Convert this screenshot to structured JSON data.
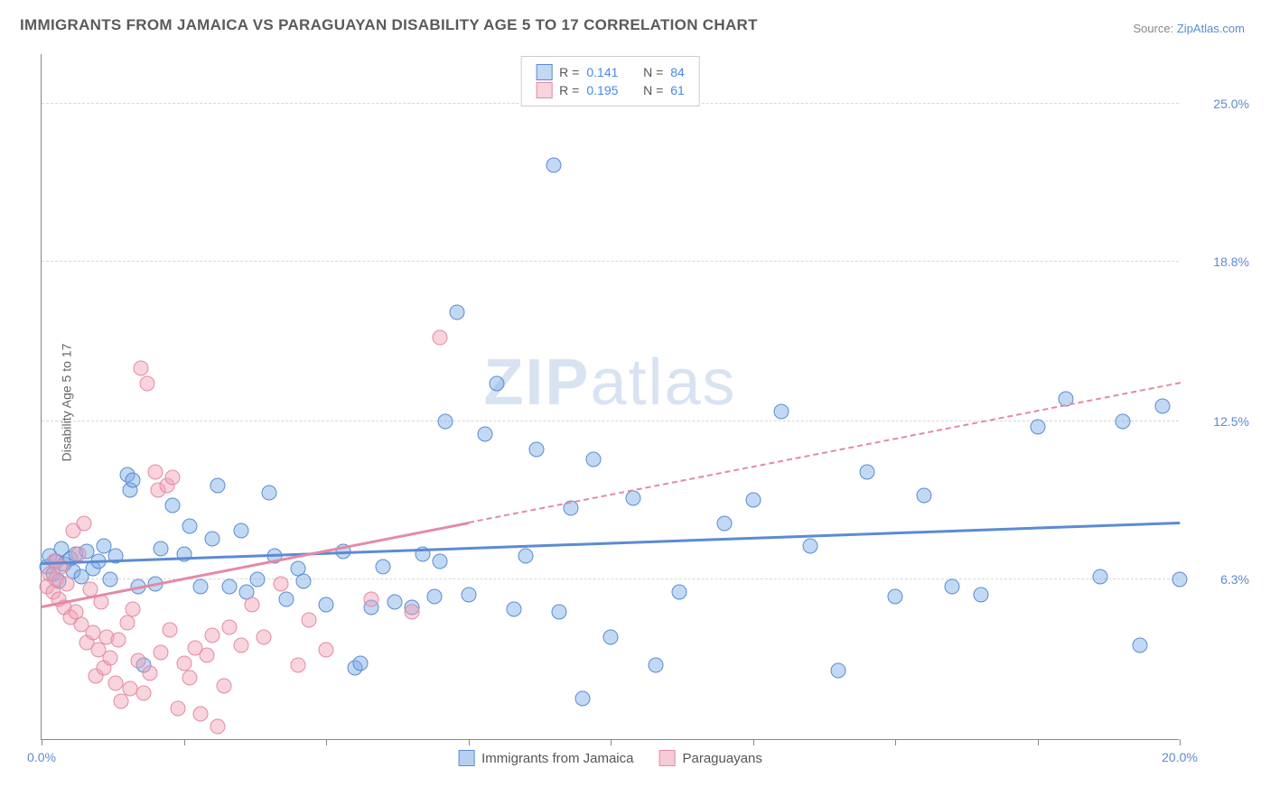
{
  "title": "IMMIGRANTS FROM JAMAICA VS PARAGUAYAN DISABILITY AGE 5 TO 17 CORRELATION CHART",
  "source_prefix": "Source: ",
  "source_link": "ZipAtlas.com",
  "ylabel": "Disability Age 5 to 17",
  "watermark_bold": "ZIP",
  "watermark_rest": "atlas",
  "chart": {
    "type": "scatter-correlation",
    "background_color": "#ffffff",
    "grid_color": "#d8d8d8",
    "axis_color": "#888888",
    "xlim": [
      0,
      20
    ],
    "ylim": [
      0,
      27
    ],
    "ytick_values": [
      6.3,
      12.5,
      18.8,
      25.0
    ],
    "ytick_labels": [
      "6.3%",
      "12.5%",
      "18.8%",
      "25.0%"
    ],
    "xtick_values": [
      0,
      2.5,
      5,
      7.5,
      10,
      12.5,
      15,
      17.5,
      20
    ],
    "xtick_label_left": "0.0%",
    "xtick_label_right": "20.0%",
    "tick_label_color": "#5b8bd4",
    "tick_label_fontsize": 14,
    "marker_radius": 8.5,
    "marker_border_width": 1.2,
    "series": [
      {
        "name": "Immigrants from Jamaica",
        "fill": "rgba(120,170,230,0.45)",
        "stroke": "#5b8bd4",
        "R": "0.141",
        "N": "84",
        "trend": {
          "x1": 0,
          "y1": 7.0,
          "x2": 20,
          "y2": 8.6,
          "solid_until_x": 20
        },
        "points": [
          [
            0.1,
            6.8
          ],
          [
            0.15,
            7.2
          ],
          [
            0.2,
            6.5
          ],
          [
            0.25,
            7.0
          ],
          [
            0.3,
            6.2
          ],
          [
            0.35,
            7.5
          ],
          [
            0.4,
            6.9
          ],
          [
            0.5,
            7.1
          ],
          [
            0.55,
            6.6
          ],
          [
            0.6,
            7.3
          ],
          [
            0.7,
            6.4
          ],
          [
            0.8,
            7.4
          ],
          [
            0.9,
            6.7
          ],
          [
            1.0,
            7.0
          ],
          [
            1.1,
            7.6
          ],
          [
            1.2,
            6.3
          ],
          [
            1.3,
            7.2
          ],
          [
            1.5,
            10.4
          ],
          [
            1.55,
            9.8
          ],
          [
            1.6,
            10.2
          ],
          [
            1.7,
            6.0
          ],
          [
            1.8,
            2.9
          ],
          [
            2.0,
            6.1
          ],
          [
            2.1,
            7.5
          ],
          [
            2.3,
            9.2
          ],
          [
            2.5,
            7.3
          ],
          [
            2.6,
            8.4
          ],
          [
            2.8,
            6.0
          ],
          [
            3.0,
            7.9
          ],
          [
            3.1,
            10.0
          ],
          [
            3.3,
            6.0
          ],
          [
            3.5,
            8.2
          ],
          [
            3.6,
            5.8
          ],
          [
            3.8,
            6.3
          ],
          [
            4.0,
            9.7
          ],
          [
            4.1,
            7.2
          ],
          [
            4.3,
            5.5
          ],
          [
            4.5,
            6.7
          ],
          [
            4.6,
            6.2
          ],
          [
            5.0,
            5.3
          ],
          [
            5.3,
            7.4
          ],
          [
            5.5,
            2.8
          ],
          [
            5.6,
            3.0
          ],
          [
            5.8,
            5.2
          ],
          [
            6.0,
            6.8
          ],
          [
            6.2,
            5.4
          ],
          [
            6.5,
            5.2
          ],
          [
            6.7,
            7.3
          ],
          [
            6.9,
            5.6
          ],
          [
            7.0,
            7.0
          ],
          [
            7.1,
            12.5
          ],
          [
            7.3,
            16.8
          ],
          [
            7.5,
            5.7
          ],
          [
            7.8,
            12.0
          ],
          [
            8.0,
            14.0
          ],
          [
            8.3,
            5.1
          ],
          [
            8.5,
            7.2
          ],
          [
            8.7,
            11.4
          ],
          [
            9.0,
            22.6
          ],
          [
            9.1,
            5.0
          ],
          [
            9.3,
            9.1
          ],
          [
            9.5,
            1.6
          ],
          [
            9.7,
            11.0
          ],
          [
            10.0,
            4.0
          ],
          [
            10.4,
            9.5
          ],
          [
            10.8,
            2.9
          ],
          [
            11.2,
            5.8
          ],
          [
            12.0,
            8.5
          ],
          [
            12.5,
            9.4
          ],
          [
            13.0,
            12.9
          ],
          [
            13.5,
            7.6
          ],
          [
            14.0,
            2.7
          ],
          [
            14.5,
            10.5
          ],
          [
            15.0,
            5.6
          ],
          [
            15.5,
            9.6
          ],
          [
            16.0,
            6.0
          ],
          [
            16.5,
            5.7
          ],
          [
            17.5,
            12.3
          ],
          [
            18.0,
            13.4
          ],
          [
            18.6,
            6.4
          ],
          [
            19.0,
            12.5
          ],
          [
            19.3,
            3.7
          ],
          [
            19.7,
            13.1
          ],
          [
            20.0,
            6.3
          ]
        ]
      },
      {
        "name": "Paraguayans",
        "fill": "rgba(240,160,180,0.45)",
        "stroke": "#e48aa4",
        "R": "0.195",
        "N": "61",
        "trend": {
          "x1": 0,
          "y1": 5.3,
          "x2": 20,
          "y2": 14.1,
          "solid_until_x": 7.5
        },
        "points": [
          [
            0.1,
            6.0
          ],
          [
            0.15,
            6.5
          ],
          [
            0.2,
            5.8
          ],
          [
            0.22,
            7.0
          ],
          [
            0.25,
            6.3
          ],
          [
            0.3,
            5.5
          ],
          [
            0.35,
            6.8
          ],
          [
            0.4,
            5.2
          ],
          [
            0.45,
            6.1
          ],
          [
            0.5,
            4.8
          ],
          [
            0.55,
            8.2
          ],
          [
            0.6,
            5.0
          ],
          [
            0.65,
            7.3
          ],
          [
            0.7,
            4.5
          ],
          [
            0.75,
            8.5
          ],
          [
            0.8,
            3.8
          ],
          [
            0.85,
            5.9
          ],
          [
            0.9,
            4.2
          ],
          [
            0.95,
            2.5
          ],
          [
            1.0,
            3.5
          ],
          [
            1.05,
            5.4
          ],
          [
            1.1,
            2.8
          ],
          [
            1.15,
            4.0
          ],
          [
            1.2,
            3.2
          ],
          [
            1.3,
            2.2
          ],
          [
            1.35,
            3.9
          ],
          [
            1.4,
            1.5
          ],
          [
            1.5,
            4.6
          ],
          [
            1.55,
            2.0
          ],
          [
            1.6,
            5.1
          ],
          [
            1.7,
            3.1
          ],
          [
            1.75,
            14.6
          ],
          [
            1.8,
            1.8
          ],
          [
            1.85,
            14.0
          ],
          [
            1.9,
            2.6
          ],
          [
            2.0,
            10.5
          ],
          [
            2.05,
            9.8
          ],
          [
            2.1,
            3.4
          ],
          [
            2.2,
            10.0
          ],
          [
            2.25,
            4.3
          ],
          [
            2.3,
            10.3
          ],
          [
            2.4,
            1.2
          ],
          [
            2.5,
            3.0
          ],
          [
            2.6,
            2.4
          ],
          [
            2.7,
            3.6
          ],
          [
            2.8,
            1.0
          ],
          [
            2.9,
            3.3
          ],
          [
            3.0,
            4.1
          ],
          [
            3.1,
            0.5
          ],
          [
            3.2,
            2.1
          ],
          [
            3.3,
            4.4
          ],
          [
            3.5,
            3.7
          ],
          [
            3.7,
            5.3
          ],
          [
            3.9,
            4.0
          ],
          [
            4.2,
            6.1
          ],
          [
            4.5,
            2.9
          ],
          [
            4.7,
            4.7
          ],
          [
            5.0,
            3.5
          ],
          [
            5.8,
            5.5
          ],
          [
            6.5,
            5.0
          ],
          [
            7.0,
            15.8
          ]
        ]
      }
    ],
    "legend_bottom": [
      {
        "label": "Immigrants from Jamaica",
        "fill": "rgba(120,170,230,0.55)",
        "stroke": "#5b8bd4"
      },
      {
        "label": "Paraguayans",
        "fill": "rgba(240,160,180,0.55)",
        "stroke": "#e48aa4"
      }
    ]
  }
}
